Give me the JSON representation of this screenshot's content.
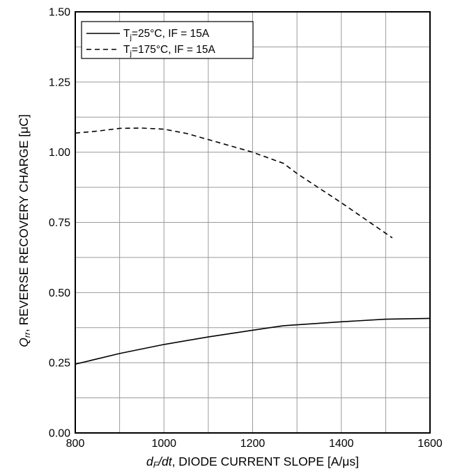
{
  "chart_data": {
    "type": "line",
    "xlabel": {
      "prefix": "d",
      "sub": "F",
      "mid": "/dt",
      "rest": ", DIODE CURRENT SLOPE [A/μs]"
    },
    "ylabel": {
      "prefix": "Q",
      "sub": "rr",
      "rest": ", REVERSE RECOVERY CHARGE [μC]"
    },
    "xlim": [
      800,
      1600
    ],
    "ylim": [
      0,
      1.5
    ],
    "xticks": [
      800,
      1000,
      1200,
      1400,
      1600
    ],
    "xtick_labels": [
      "800",
      "1000",
      "1200",
      "1400",
      "1600"
    ],
    "yticks": [
      0,
      0.25,
      0.5,
      0.75,
      1.0,
      1.25,
      1.5
    ],
    "ytick_labels": [
      "0.00",
      "0.25",
      "0.50",
      "0.75",
      "1.00",
      "1.25",
      "1.50"
    ],
    "x_grid": [
      800,
      900,
      1000,
      1100,
      1200,
      1300,
      1400,
      1500,
      1600
    ],
    "y_grid": [
      0,
      0.125,
      0.25,
      0.375,
      0.5,
      0.625,
      0.75,
      0.875,
      1.0,
      1.125,
      1.25,
      1.375,
      1.5
    ],
    "grid": true,
    "legend_position": "top-left",
    "series": [
      {
        "name": "Tj=25°C, IF = 15A",
        "name_parts": {
          "pre": "T",
          "sub": "j",
          "post": "=25°C, IF = 15A"
        },
        "style": "solid",
        "x": [
          800,
          900,
          1000,
          1100,
          1200,
          1270,
          1400,
          1500,
          1600
        ],
        "y": [
          0.245,
          0.283,
          0.315,
          0.342,
          0.366,
          0.382,
          0.396,
          0.405,
          0.408
        ]
      },
      {
        "name": "Tj=175°C, IF = 15A",
        "name_parts": {
          "pre": "T",
          "sub": "j",
          "post": "=175°C, IF = 15A"
        },
        "style": "dashed",
        "x": [
          800,
          850,
          900,
          950,
          1000,
          1050,
          1100,
          1200,
          1270,
          1300,
          1400,
          1515
        ],
        "y": [
          1.068,
          1.075,
          1.085,
          1.086,
          1.082,
          1.067,
          1.045,
          1.0,
          0.96,
          0.924,
          0.82,
          0.695
        ]
      }
    ]
  }
}
